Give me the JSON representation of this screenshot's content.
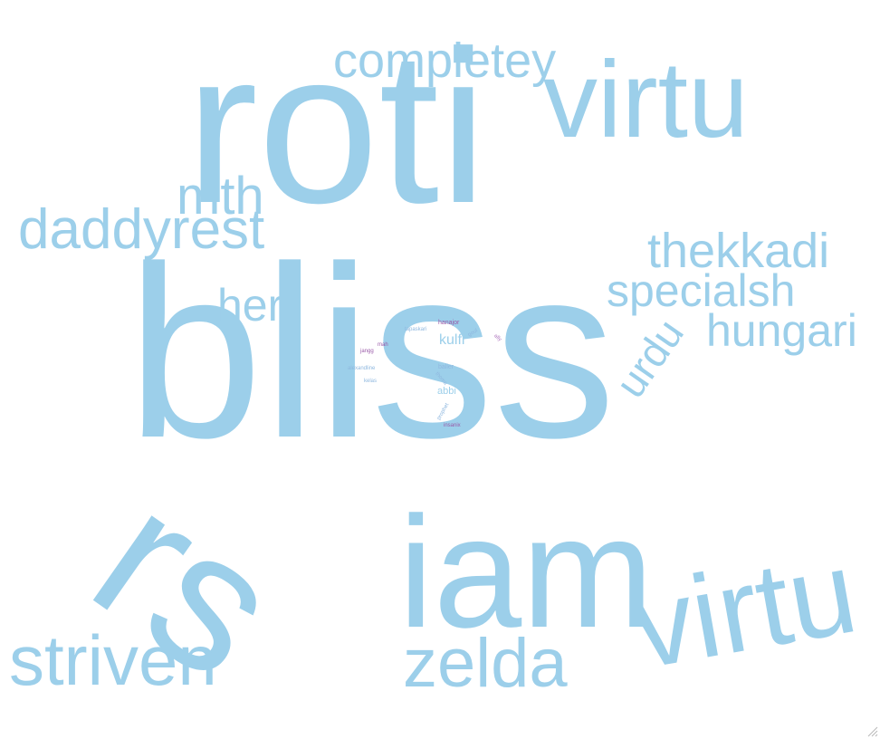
{
  "colors": {
    "primary": "#9ccfea",
    "small_pale": "#8fb8df",
    "small_purple": "#9a5aa8",
    "small_violet": "#b07bc0"
  },
  "words": [
    {
      "text": "roti",
      "color": "primary"
    },
    {
      "text": "bliss",
      "color": "primary"
    },
    {
      "text": "rs",
      "color": "primary"
    },
    {
      "text": "iam",
      "color": "primary"
    },
    {
      "text": "virtu",
      "color": "primary"
    },
    {
      "text": "virtu",
      "color": "primary"
    },
    {
      "text": "completey",
      "color": "primary"
    },
    {
      "text": "mth",
      "color": "primary"
    },
    {
      "text": "daddyrest",
      "color": "primary"
    },
    {
      "text": "heri",
      "color": "primary"
    },
    {
      "text": "thekkadi",
      "color": "primary"
    },
    {
      "text": "specialsh",
      "color": "primary"
    },
    {
      "text": "hungari",
      "color": "primary"
    },
    {
      "text": "urdu",
      "color": "primary"
    },
    {
      "text": "striven",
      "color": "primary"
    },
    {
      "text": "zelda",
      "color": "primary"
    },
    {
      "text": "kulfi",
      "color": "primary"
    },
    {
      "text": "abbi",
      "color": "primary"
    },
    {
      "text": "hanajor",
      "color": "small_purple"
    },
    {
      "text": "tapaskari",
      "color": "small_pale"
    },
    {
      "text": "mah",
      "color": "small_purple"
    },
    {
      "text": "jangg",
      "color": "small_purple"
    },
    {
      "text": "baller",
      "color": "small_pale"
    },
    {
      "text": "goul",
      "color": "small_pale"
    },
    {
      "text": "ally",
      "color": "small_violet"
    },
    {
      "text": "alexandline",
      "color": "small_pale"
    },
    {
      "text": "kelas",
      "color": "small_pale"
    },
    {
      "text": "thoma",
      "color": "small_pale"
    },
    {
      "text": "prophet",
      "color": "small_pale"
    },
    {
      "text": "insanix",
      "color": "small_purple"
    }
  ]
}
